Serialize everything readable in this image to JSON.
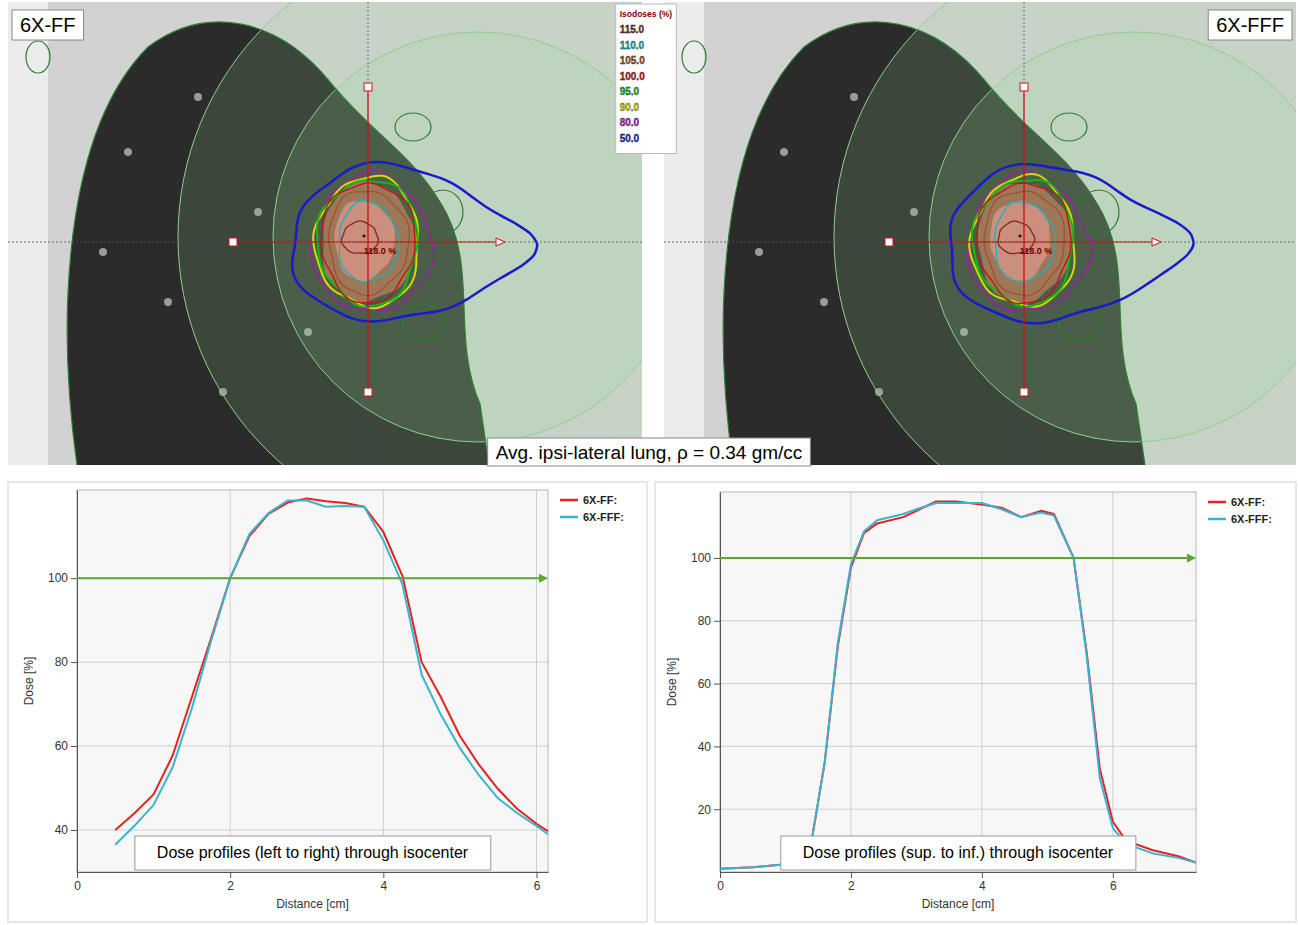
{
  "figure": {
    "panels": [
      {
        "label": "6X-FF",
        "max_dose_label": "118.0 %"
      },
      {
        "label": "6X-FFF",
        "max_dose_label": "118.0 %"
      }
    ],
    "isodose_legend": {
      "title": "Isodoses (%)",
      "levels": [
        {
          "value": 115,
          "label": "115.0",
          "color": "#7b2a1e"
        },
        {
          "value": 110,
          "label": "110.0",
          "color": "#12b5c0"
        },
        {
          "value": 105,
          "label": "105.0",
          "color": "#a0522d"
        },
        {
          "value": 100,
          "label": "100.0",
          "color": "#c81010"
        },
        {
          "value": 95,
          "label": "95.0",
          "color": "#12b812"
        },
        {
          "value": 90,
          "label": "90.0",
          "color": "#d8d800"
        },
        {
          "value": 80,
          "label": "80.0",
          "color": "#b012b8"
        },
        {
          "value": 50,
          "label": "50.0",
          "color": "#1a1acc"
        }
      ]
    },
    "caption": "Avg. ipsi-lateral lung, ρ = 0.34 gm/cc"
  },
  "chart_data": [
    {
      "type": "line",
      "annotation": "Dose profiles (left to right) through isocenter",
      "xlabel": "Distance [cm]",
      "ylabel": "Dose [%]",
      "xlim": [
        0,
        6.15
      ],
      "ylim": [
        30,
        121
      ],
      "xticks": [
        0,
        2,
        4,
        6
      ],
      "yticks": [
        40,
        60,
        80,
        100
      ],
      "grid": true,
      "legend": "right",
      "reference_line": {
        "value": 100,
        "color": "#5aa832"
      },
      "x": [
        0.5,
        0.75,
        1,
        1.25,
        1.5,
        1.75,
        2,
        2.25,
        2.5,
        2.75,
        3,
        3.25,
        3.5,
        3.75,
        4,
        4.25,
        4.5,
        4.75,
        5,
        5.25,
        5.5,
        5.75,
        6,
        6.15
      ],
      "series": [
        {
          "name": "6X-FF:",
          "color": "#e8211c",
          "values": [
            40,
            44,
            48.5,
            57.8,
            71.7,
            85.6,
            100,
            110,
            115.3,
            118,
            119,
            118.3,
            117.9,
            117,
            111,
            100.5,
            80,
            71.7,
            62.4,
            55.5,
            49.7,
            45,
            41.5,
            39.7
          ]
        },
        {
          "name": "6X-FFF:",
          "color": "#3bb3d0",
          "values": [
            36.5,
            41,
            46,
            55,
            69,
            85,
            100,
            110.5,
            115.5,
            118.5,
            118.5,
            117,
            117.2,
            117,
            109,
            98.5,
            77,
            67.5,
            59.5,
            53,
            47.5,
            44,
            41,
            39
          ]
        }
      ]
    },
    {
      "type": "line",
      "annotation": "Dose profiles (sup. to inf.) through isocenter",
      "xlabel": "Distance [cm]",
      "ylabel": "Dose [%]",
      "xlim": [
        0,
        7.27
      ],
      "ylim": [
        0,
        121
      ],
      "xticks": [
        0,
        2,
        4,
        6
      ],
      "yticks": [
        20,
        40,
        60,
        80,
        100
      ],
      "grid": true,
      "legend": "right",
      "reference_line": {
        "value": 100,
        "color": "#5aa832"
      },
      "x": [
        0,
        0.5,
        1,
        1.4,
        1.6,
        1.8,
        2,
        2.2,
        2.4,
        2.8,
        3,
        3.3,
        3.6,
        4,
        4.3,
        4.6,
        4.9,
        5.1,
        5.4,
        5.6,
        5.8,
        6,
        6.2,
        6.6,
        7,
        7.27
      ],
      "series": [
        {
          "name": "6X-FF:",
          "color": "#e8211c",
          "values": [
            1,
            1.5,
            2.5,
            10,
            35,
            72,
            97,
            108,
            111,
            113,
            115,
            118,
            118,
            117,
            116,
            113,
            115,
            114,
            100,
            70,
            33,
            16,
            10,
            7,
            5,
            3
          ]
        },
        {
          "name": "6X-FFF:",
          "color": "#3bb3d0",
          "values": [
            1,
            1.5,
            2.5,
            10,
            35,
            73,
            98,
            108.5,
            112,
            114,
            115.5,
            117.5,
            117.5,
            117.5,
            115.5,
            113,
            114.5,
            113.5,
            100,
            69,
            30,
            14,
            9,
            6,
            4.5,
            3
          ]
        }
      ]
    }
  ]
}
